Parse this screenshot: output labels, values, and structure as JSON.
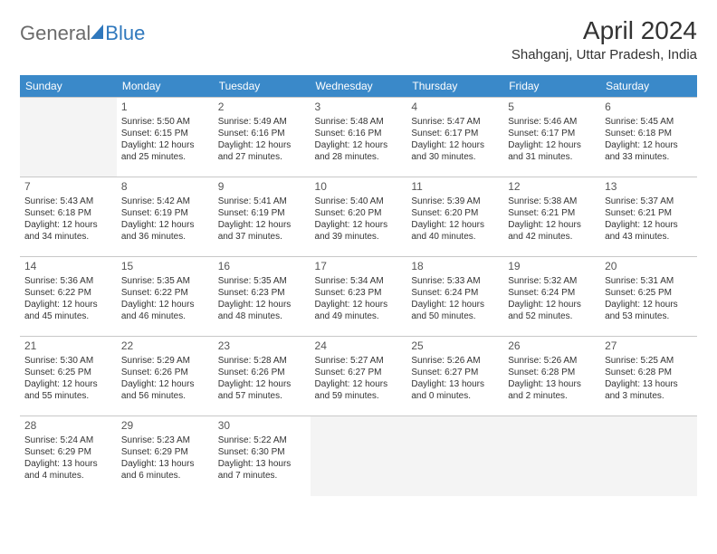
{
  "logo": {
    "part1": "General",
    "part2": "Blue"
  },
  "title": "April 2024",
  "location": "Shahganj, Uttar Pradesh, India",
  "colors": {
    "header_bg": "#3a89c9",
    "header_text": "#ffffff",
    "border": "#c8c8c8",
    "empty_bg": "#f4f4f4",
    "logo_gray": "#6b6b6b",
    "logo_blue": "#2f78bd"
  },
  "weekdays": [
    "Sunday",
    "Monday",
    "Tuesday",
    "Wednesday",
    "Thursday",
    "Friday",
    "Saturday"
  ],
  "start_offset": 1,
  "days": [
    {
      "n": 1,
      "sr": "5:50 AM",
      "ss": "6:15 PM",
      "dl": "12 hours and 25 minutes."
    },
    {
      "n": 2,
      "sr": "5:49 AM",
      "ss": "6:16 PM",
      "dl": "12 hours and 27 minutes."
    },
    {
      "n": 3,
      "sr": "5:48 AM",
      "ss": "6:16 PM",
      "dl": "12 hours and 28 minutes."
    },
    {
      "n": 4,
      "sr": "5:47 AM",
      "ss": "6:17 PM",
      "dl": "12 hours and 30 minutes."
    },
    {
      "n": 5,
      "sr": "5:46 AM",
      "ss": "6:17 PM",
      "dl": "12 hours and 31 minutes."
    },
    {
      "n": 6,
      "sr": "5:45 AM",
      "ss": "6:18 PM",
      "dl": "12 hours and 33 minutes."
    },
    {
      "n": 7,
      "sr": "5:43 AM",
      "ss": "6:18 PM",
      "dl": "12 hours and 34 minutes."
    },
    {
      "n": 8,
      "sr": "5:42 AM",
      "ss": "6:19 PM",
      "dl": "12 hours and 36 minutes."
    },
    {
      "n": 9,
      "sr": "5:41 AM",
      "ss": "6:19 PM",
      "dl": "12 hours and 37 minutes."
    },
    {
      "n": 10,
      "sr": "5:40 AM",
      "ss": "6:20 PM",
      "dl": "12 hours and 39 minutes."
    },
    {
      "n": 11,
      "sr": "5:39 AM",
      "ss": "6:20 PM",
      "dl": "12 hours and 40 minutes."
    },
    {
      "n": 12,
      "sr": "5:38 AM",
      "ss": "6:21 PM",
      "dl": "12 hours and 42 minutes."
    },
    {
      "n": 13,
      "sr": "5:37 AM",
      "ss": "6:21 PM",
      "dl": "12 hours and 43 minutes."
    },
    {
      "n": 14,
      "sr": "5:36 AM",
      "ss": "6:22 PM",
      "dl": "12 hours and 45 minutes."
    },
    {
      "n": 15,
      "sr": "5:35 AM",
      "ss": "6:22 PM",
      "dl": "12 hours and 46 minutes."
    },
    {
      "n": 16,
      "sr": "5:35 AM",
      "ss": "6:23 PM",
      "dl": "12 hours and 48 minutes."
    },
    {
      "n": 17,
      "sr": "5:34 AM",
      "ss": "6:23 PM",
      "dl": "12 hours and 49 minutes."
    },
    {
      "n": 18,
      "sr": "5:33 AM",
      "ss": "6:24 PM",
      "dl": "12 hours and 50 minutes."
    },
    {
      "n": 19,
      "sr": "5:32 AM",
      "ss": "6:24 PM",
      "dl": "12 hours and 52 minutes."
    },
    {
      "n": 20,
      "sr": "5:31 AM",
      "ss": "6:25 PM",
      "dl": "12 hours and 53 minutes."
    },
    {
      "n": 21,
      "sr": "5:30 AM",
      "ss": "6:25 PM",
      "dl": "12 hours and 55 minutes."
    },
    {
      "n": 22,
      "sr": "5:29 AM",
      "ss": "6:26 PM",
      "dl": "12 hours and 56 minutes."
    },
    {
      "n": 23,
      "sr": "5:28 AM",
      "ss": "6:26 PM",
      "dl": "12 hours and 57 minutes."
    },
    {
      "n": 24,
      "sr": "5:27 AM",
      "ss": "6:27 PM",
      "dl": "12 hours and 59 minutes."
    },
    {
      "n": 25,
      "sr": "5:26 AM",
      "ss": "6:27 PM",
      "dl": "13 hours and 0 minutes."
    },
    {
      "n": 26,
      "sr": "5:26 AM",
      "ss": "6:28 PM",
      "dl": "13 hours and 2 minutes."
    },
    {
      "n": 27,
      "sr": "5:25 AM",
      "ss": "6:28 PM",
      "dl": "13 hours and 3 minutes."
    },
    {
      "n": 28,
      "sr": "5:24 AM",
      "ss": "6:29 PM",
      "dl": "13 hours and 4 minutes."
    },
    {
      "n": 29,
      "sr": "5:23 AM",
      "ss": "6:29 PM",
      "dl": "13 hours and 6 minutes."
    },
    {
      "n": 30,
      "sr": "5:22 AM",
      "ss": "6:30 PM",
      "dl": "13 hours and 7 minutes."
    }
  ],
  "labels": {
    "sunrise": "Sunrise:",
    "sunset": "Sunset:",
    "daylight": "Daylight:"
  }
}
